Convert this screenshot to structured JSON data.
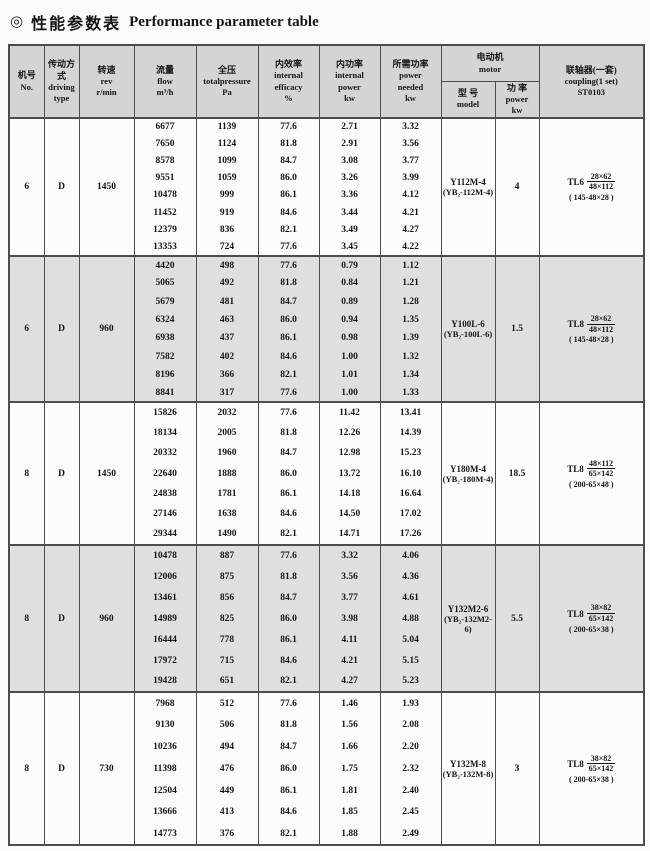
{
  "title": {
    "icon": "◎",
    "zh": "性能参数表",
    "en": "Performance parameter table"
  },
  "colors": {
    "header_bg": "#d5d4d2",
    "band_bg": "#e0dfdc",
    "border": "#4d4d4d"
  },
  "table": {
    "headers": {
      "no": {
        "zh": "机号",
        "en": "No."
      },
      "driving": {
        "zh": "传动方式",
        "en": "driving\ntype"
      },
      "rev": {
        "zh": "转速",
        "en": "rev\nr/min"
      },
      "flow": {
        "zh": "流量",
        "en": "flow\nm³/h"
      },
      "pressure": {
        "zh": "全压",
        "en": "totalpressure\nPa"
      },
      "efficiency": {
        "zh": "内效率",
        "en": "internal\nefficacy\n%"
      },
      "internal_power": {
        "zh": "内功率",
        "en": "internal\npower\nkw"
      },
      "power_needed": {
        "zh": "所需功率",
        "en": "power\nneeded\nkw"
      },
      "motor": {
        "zh": "电动机",
        "en": "motor"
      },
      "model": {
        "zh": "型 号",
        "en": "model"
      },
      "motor_power": {
        "zh": "功 率",
        "en": "power\nkw"
      },
      "coupling": {
        "zh": "联轴器(一套)",
        "en": "coupling(1 set)\nST0103"
      }
    },
    "blocks": [
      {
        "no": "6",
        "driving": "D",
        "rev": "1450",
        "shaded": false,
        "rows": [
          [
            "6677",
            "1139",
            "77.6",
            "2.71",
            "3.32"
          ],
          [
            "7650",
            "1124",
            "81.8",
            "2.91",
            "3.56"
          ],
          [
            "8578",
            "1099",
            "84.7",
            "3.08",
            "3.77"
          ],
          [
            "9551",
            "1059",
            "86.0",
            "3.26",
            "3.99"
          ],
          [
            "10478",
            "999",
            "86.1",
            "3.36",
            "4.12"
          ],
          [
            "11452",
            "919",
            "84.6",
            "3.44",
            "4.21"
          ],
          [
            "12379",
            "836",
            "82.1",
            "3.49",
            "4.27"
          ],
          [
            "13353",
            "724",
            "77.6",
            "3.45",
            "4.22"
          ]
        ],
        "motor_model_line1": "Y112M-4",
        "motor_model_line2": "(YB₂-112M-4)",
        "motor_power": "4",
        "coupling": {
          "prefix": "TL6",
          "frac_top": "28×62",
          "frac_bottom": "48×112",
          "note": "( 145-48×28 )"
        }
      },
      {
        "no": "6",
        "driving": "D",
        "rev": "960",
        "shaded": true,
        "rows": [
          [
            "4420",
            "498",
            "77.6",
            "0.79",
            "1.12"
          ],
          [
            "5065",
            "492",
            "81.8",
            "0.84",
            "1.21"
          ],
          [
            "5679",
            "481",
            "84.7",
            "0.89",
            "1.28"
          ],
          [
            "6324",
            "463",
            "86.0",
            "0.94",
            "1.35"
          ],
          [
            "6938",
            "437",
            "86.1",
            "0.98",
            "1.39"
          ],
          [
            "7582",
            "402",
            "84.6",
            "1.00",
            "1.32"
          ],
          [
            "8196",
            "366",
            "82.1",
            "1.01",
            "1.34"
          ],
          [
            "8841",
            "317",
            "77.6",
            "1.00",
            "1.33"
          ]
        ],
        "motor_model_line1": "Y100L-6",
        "motor_model_line2": "(YB₂-100L-6)",
        "motor_power": "1.5",
        "coupling": {
          "prefix": "TL8",
          "frac_top": "28×62",
          "frac_bottom": "48×112",
          "note": "( 145-48×28 )"
        }
      },
      {
        "no": "8",
        "driving": "D",
        "rev": "1450",
        "shaded": false,
        "rows": [
          [
            "15826",
            "2032",
            "77.6",
            "11.42",
            "13.41"
          ],
          [
            "18134",
            "2005",
            "81.8",
            "12.26",
            "14.39"
          ],
          [
            "20332",
            "1960",
            "84.7",
            "12.98",
            "15.23"
          ],
          [
            "22640",
            "1888",
            "86.0",
            "13.72",
            "16.10"
          ],
          [
            "24838",
            "1781",
            "86.1",
            "14.18",
            "16.64"
          ],
          [
            "27146",
            "1638",
            "84.6",
            "14.50",
            "17.02"
          ],
          [
            "29344",
            "1490",
            "82.1",
            "14.71",
            "17.26"
          ]
        ],
        "motor_model_line1": "Y180M-4",
        "motor_model_line2": "(YB₂-180M-4)",
        "motor_power": "18.5",
        "coupling": {
          "prefix": "TL8",
          "frac_top": "48×112",
          "frac_bottom": "65×142",
          "note": "( 200-65×48 )"
        }
      },
      {
        "no": "8",
        "driving": "D",
        "rev": "960",
        "shaded": true,
        "rows": [
          [
            "10478",
            "887",
            "77.6",
            "3.32",
            "4.06"
          ],
          [
            "12006",
            "875",
            "81.8",
            "3.56",
            "4.36"
          ],
          [
            "13461",
            "856",
            "84.7",
            "3.77",
            "4.61"
          ],
          [
            "14989",
            "825",
            "86.0",
            "3.98",
            "4.88"
          ],
          [
            "16444",
            "778",
            "86.1",
            "4.11",
            "5.04"
          ],
          [
            "17972",
            "715",
            "84.6",
            "4.21",
            "5.15"
          ],
          [
            "19428",
            "651",
            "82.1",
            "4.27",
            "5.23"
          ]
        ],
        "motor_model_line1": "Y132M2-6",
        "motor_model_line2": "(YB₂-132M2-6)",
        "motor_power": "5.5",
        "coupling": {
          "prefix": "TL8",
          "frac_top": "38×82",
          "frac_bottom": "65×142",
          "note": "( 200-65×38 )"
        }
      },
      {
        "no": "8",
        "driving": "D",
        "rev": "730",
        "shaded": false,
        "rows": [
          [
            "7968",
            "512",
            "77.6",
            "1.46",
            "1.93"
          ],
          [
            "9130",
            "506",
            "81.8",
            "1.56",
            "2.08"
          ],
          [
            "10236",
            "494",
            "84.7",
            "1.66",
            "2.20"
          ],
          [
            "11398",
            "476",
            "86.0",
            "1.75",
            "2.32"
          ],
          [
            "12504",
            "449",
            "86.1",
            "1.81",
            "2.40"
          ],
          [
            "13666",
            "413",
            "84.6",
            "1.85",
            "2.45"
          ],
          [
            "14773",
            "376",
            "82.1",
            "1.88",
            "2.49"
          ]
        ],
        "motor_model_line1": "Y132M-8",
        "motor_model_line2": "(YB₂-132M-8)",
        "motor_power": "3",
        "coupling": {
          "prefix": "TL8",
          "frac_top": "38×82",
          "frac_bottom": "65×142",
          "note": "( 200-65×38 )"
        }
      }
    ]
  }
}
